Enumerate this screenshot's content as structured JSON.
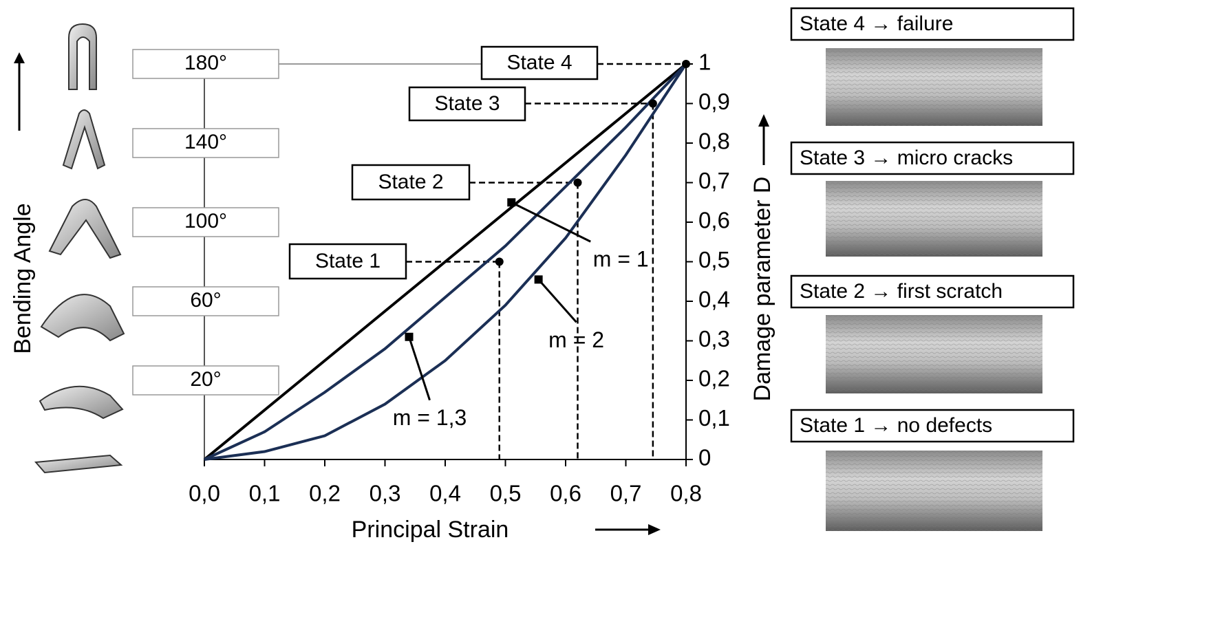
{
  "chart_data": {
    "type": "line",
    "x_label": "Principal Strain",
    "y_label": "Damage parameter D",
    "left_label": "Bending Angle",
    "x": [
      0,
      0.1,
      0.2,
      0.3,
      0.4,
      0.5,
      0.6,
      0.7,
      0.8
    ],
    "xlim": [
      0,
      0.8
    ],
    "ylim": [
      0,
      1
    ],
    "xticks": [
      {
        "value": 0,
        "label": "0,0"
      },
      {
        "value": 0.1,
        "label": "0,1"
      },
      {
        "value": 0.2,
        "label": "0,2"
      },
      {
        "value": 0.3,
        "label": "0,3"
      },
      {
        "value": 0.4,
        "label": "0,4"
      },
      {
        "value": 0.5,
        "label": "0,5"
      },
      {
        "value": 0.6,
        "label": "0,6"
      },
      {
        "value": 0.7,
        "label": "0,7"
      },
      {
        "value": 0.8,
        "label": "0,8"
      }
    ],
    "yticks": [
      0,
      {
        "value": 0.1,
        "label": "0,1"
      },
      {
        "value": 0.2,
        "label": "0,2"
      },
      {
        "value": 0.3,
        "label": "0,3"
      },
      {
        "value": 0.4,
        "label": "0,4"
      },
      {
        "value": 0.5,
        "label": "0,5"
      },
      {
        "value": 0.6,
        "label": "0,6"
      },
      {
        "value": 0.7,
        "label": "0,7"
      },
      {
        "value": 0.8,
        "label": "0,8"
      },
      {
        "value": 0.9,
        "label": "0,9"
      },
      1
    ],
    "angle_ticks": [
      {
        "value": 1,
        "label": "180°"
      },
      {
        "value": 0.8,
        "label": "140°"
      },
      {
        "value": 0.6,
        "label": "100°"
      },
      {
        "value": 0.4,
        "label": "60°"
      },
      {
        "value": 0.2,
        "label": "20°"
      }
    ],
    "series": [
      {
        "name": "m = 1",
        "color": "#000000",
        "values": [
          0,
          0.125,
          0.25,
          0.375,
          0.5,
          0.625,
          0.75,
          0.875,
          1
        ],
        "label_point": {
          "x": 0.51,
          "y": 0.65
        }
      },
      {
        "name": "m = 1,3",
        "color": "#1b2f55",
        "values": [
          0,
          0.07,
          0.17,
          0.28,
          0.41,
          0.54,
          0.69,
          0.84,
          1
        ],
        "label_point": {
          "x": 0.34,
          "y": 0.31
        }
      },
      {
        "name": "m = 2",
        "color": "#1b2f55",
        "values": [
          0,
          0.02,
          0.06,
          0.14,
          0.25,
          0.39,
          0.56,
          0.77,
          1
        ],
        "label_point": {
          "x": 0.555,
          "y": 0.455
        }
      }
    ],
    "states": [
      {
        "label": "State 1",
        "x": 0.49,
        "y": 0.5
      },
      {
        "label": "State 2",
        "x": 0.62,
        "y": 0.7
      },
      {
        "label": "State 3",
        "x": 0.745,
        "y": 0.9
      },
      {
        "label": "State 4",
        "x": 0.8,
        "y": 1
      }
    ],
    "panels": [
      "State 4 → failure",
      "State 3 → micro cracks",
      "State 2 → first scratch",
      "State 1 → no defects"
    ]
  }
}
